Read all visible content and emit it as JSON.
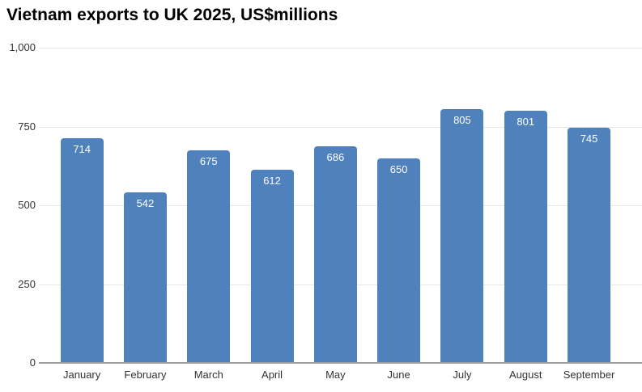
{
  "chart_data": {
    "type": "bar",
    "title": "Vietnam exports to UK 2025, US$millions",
    "categories": [
      "January",
      "February",
      "March",
      "April",
      "May",
      "June",
      "July",
      "August",
      "September"
    ],
    "values": [
      714,
      542,
      675,
      612,
      686,
      650,
      805,
      801,
      745
    ],
    "bar_value_labels": [
      "714",
      "542",
      "675",
      "612",
      "686",
      "650",
      "805",
      "801",
      "745"
    ],
    "xlabel": "",
    "ylabel": "",
    "ylim": [
      0,
      1000
    ],
    "yticks": [
      0,
      250,
      500,
      750,
      1000
    ],
    "ytick_labels": [
      "0",
      "250",
      "500",
      "750",
      "1,000"
    ],
    "grid": true,
    "legend_position": "none",
    "colors": {
      "bar": "#4f81bd",
      "bar_label": "#ffffff",
      "gridline": "#e6e6e6",
      "axis_line": "#9e9e9e",
      "tick_text": "#333333",
      "title": "#000000",
      "background": "#ffffff"
    }
  }
}
